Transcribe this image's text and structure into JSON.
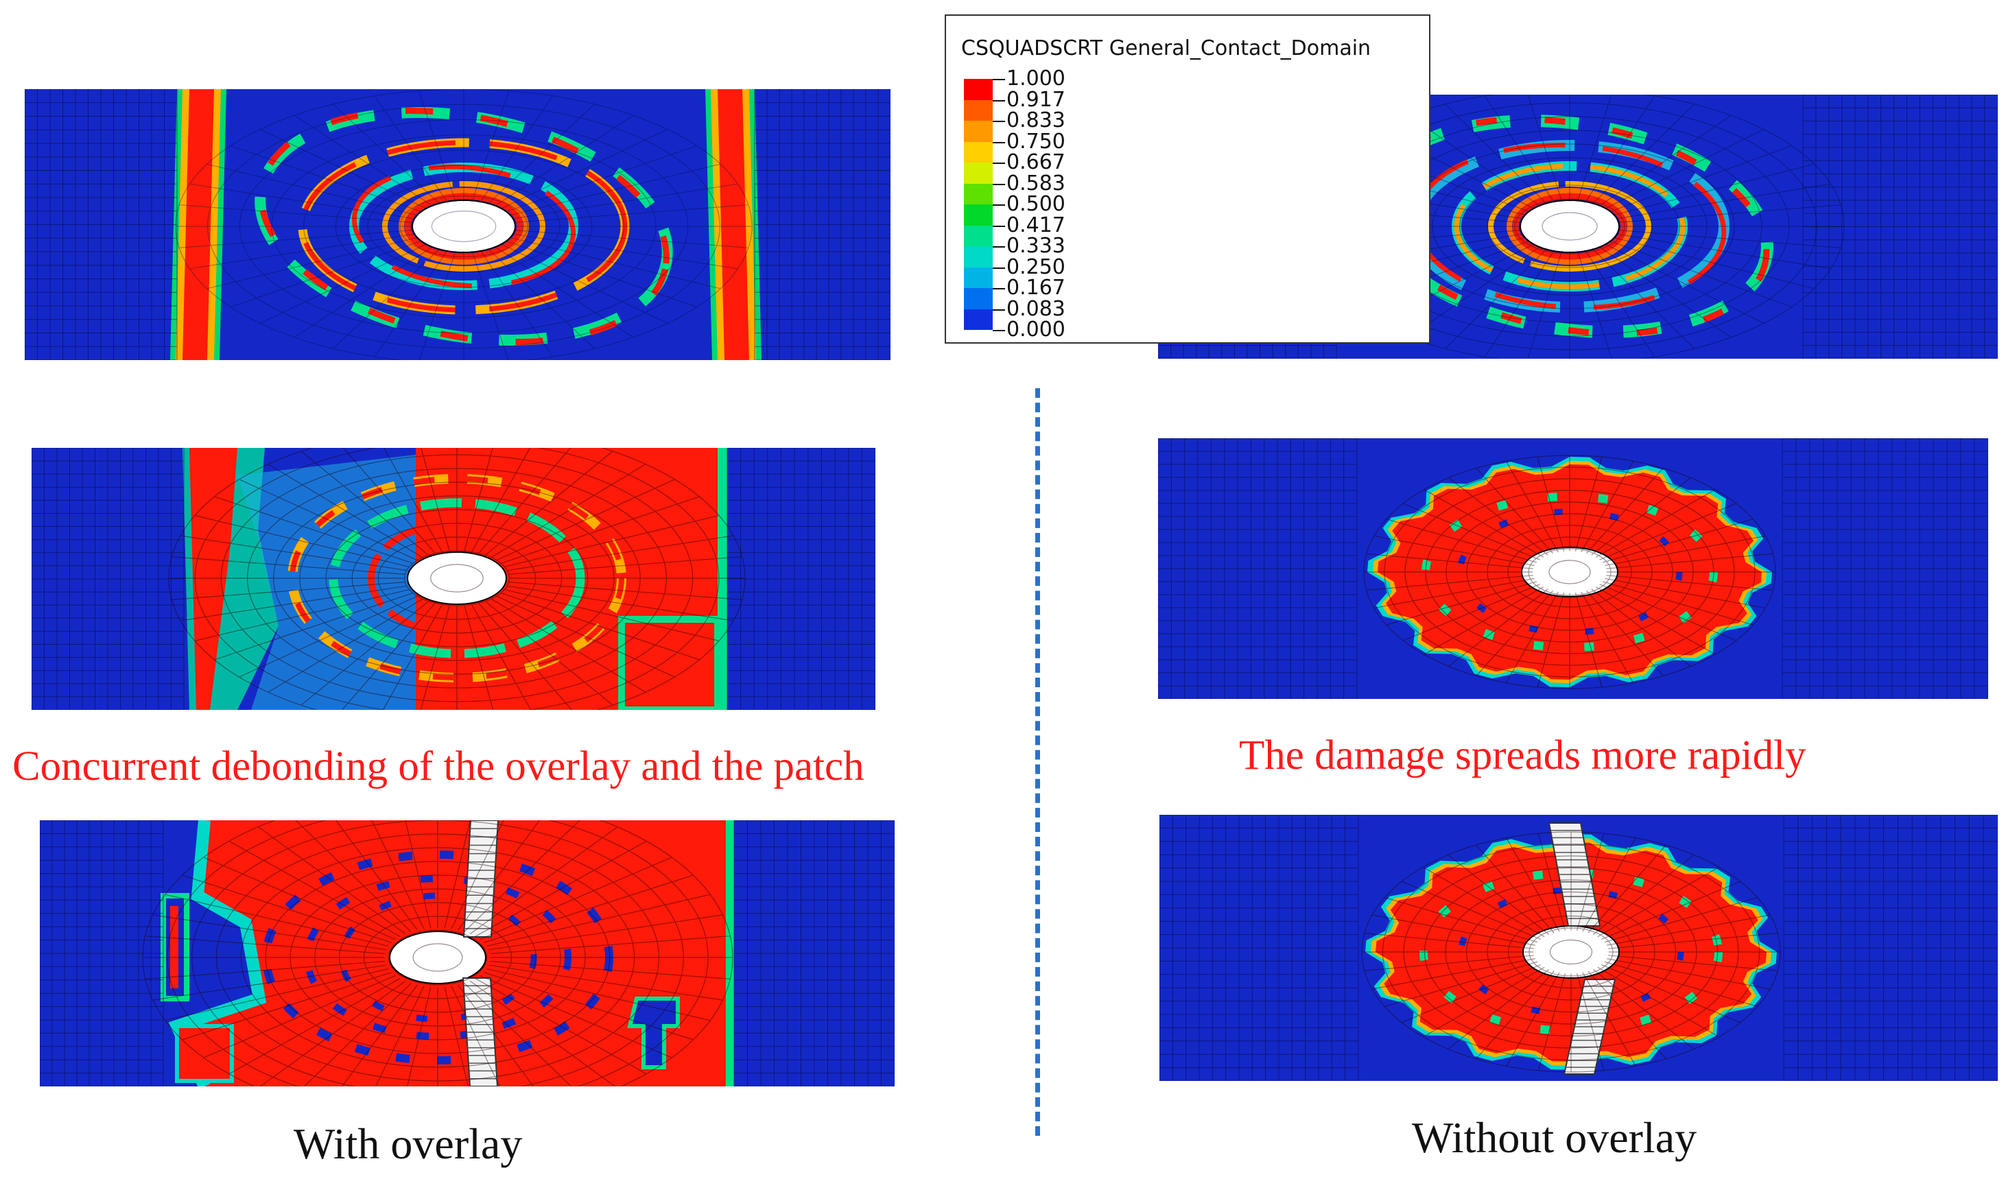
{
  "legend": {
    "title": "CSQUADSCRT General_Contact_Domain",
    "levels": [
      "1.000",
      "0.917",
      "0.833",
      "0.750",
      "0.667",
      "0.583",
      "0.500",
      "0.417",
      "0.333",
      "0.250",
      "0.167",
      "0.083",
      "0.000"
    ],
    "colors": [
      "#ff0000",
      "#ff5a00",
      "#ff9900",
      "#ffcf00",
      "#d4f000",
      "#5ee000",
      "#00d82a",
      "#00e08c",
      "#00d8c8",
      "#00b4e6",
      "#0070f0",
      "#1030e0",
      "#0a0ab4"
    ]
  },
  "captions": {
    "left_middle": "Concurrent debonding of the overlay and the  patch",
    "right_middle": "The damage spreads more rapidly",
    "left_bottom": "With overlay",
    "right_bottom": "Without overlay"
  },
  "colors": {
    "mesh_blue": "#1428c8",
    "damage_red": "#ff1a0a",
    "caption_red": "#ff1a1a",
    "divider_blue": "#2a72c7"
  }
}
